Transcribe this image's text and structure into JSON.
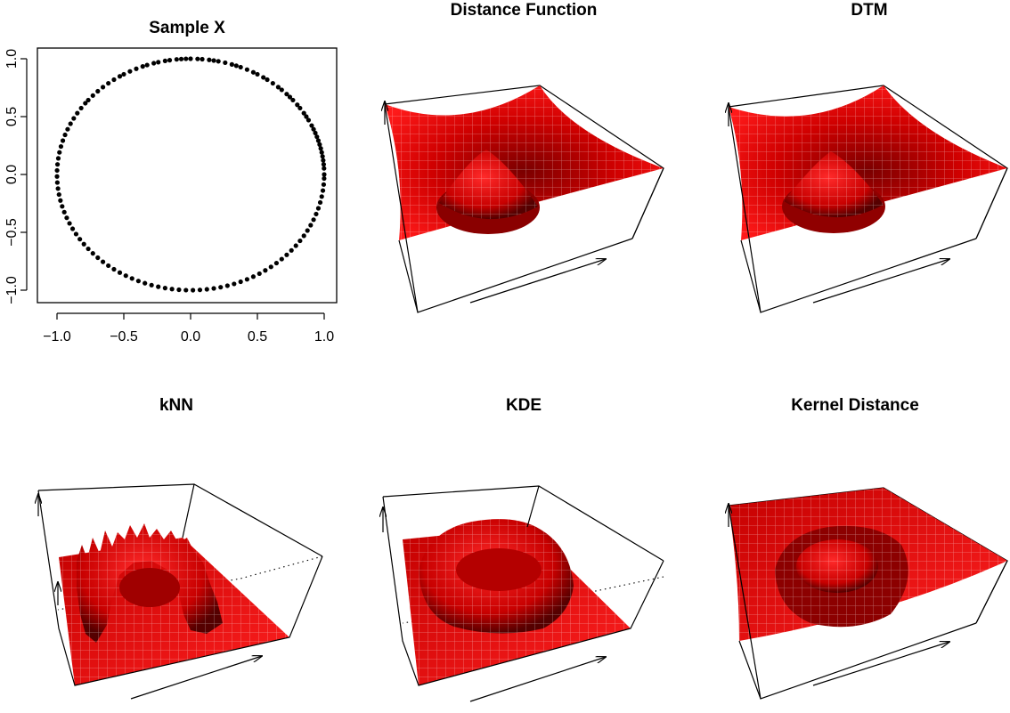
{
  "chart_data": [
    {
      "type": "scatter",
      "title": "Sample X",
      "xlim": [
        -1.0,
        1.0
      ],
      "ylim": [
        -1.0,
        1.0
      ],
      "x_ticks": [
        "−1.0",
        "−0.5",
        "0.0",
        "0.5",
        "1.0"
      ],
      "y_ticks": [
        "−1.0",
        "−0.5",
        "0.0",
        "0.5",
        "1.0"
      ],
      "points": {
        "shape": "circle",
        "radius": 1.0,
        "angles_deg": [
          0,
          3,
          5,
          7,
          9,
          11,
          13,
          15,
          17,
          19,
          21,
          23,
          25,
          28,
          30,
          32,
          35,
          37,
          40,
          42,
          44,
          47,
          49,
          52,
          55,
          57,
          60,
          62,
          65,
          68,
          70,
          72,
          75,
          78,
          80,
          82,
          85,
          87,
          90,
          92,
          94,
          96,
          99,
          101,
          104,
          106,
          109,
          111,
          114,
          117,
          120,
          122,
          125,
          128,
          131,
          134,
          137,
          140,
          142,
          145,
          148,
          151,
          154,
          157,
          160,
          163,
          166,
          169,
          172,
          175,
          178,
          181,
          184,
          187,
          190,
          193,
          196,
          199,
          202,
          205,
          208,
          211,
          214,
          217,
          220,
          223,
          226,
          229,
          232,
          235,
          238,
          241,
          244,
          247,
          250,
          253,
          256,
          259,
          262,
          265,
          268,
          271,
          274,
          277,
          280,
          283,
          286,
          289,
          292,
          295,
          298,
          301,
          304,
          307,
          310,
          313,
          316,
          319,
          322,
          325,
          328,
          331,
          334,
          337,
          340,
          343,
          346,
          349,
          352,
          355,
          358
        ]
      }
    },
    {
      "type": "surface",
      "title": "Distance Function",
      "surface": "distance-function"
    },
    {
      "type": "surface",
      "title": "DTM",
      "surface": "dtm"
    },
    {
      "type": "surface",
      "title": "kNN",
      "surface": "knn"
    },
    {
      "type": "surface",
      "title": "KDE",
      "surface": "kde"
    },
    {
      "type": "surface",
      "title": "Kernel Distance",
      "surface": "kernel-distance"
    }
  ],
  "colors": {
    "surface": "#e00000",
    "surface_shadow": "#3a0000",
    "mesh": "#ffffff",
    "axes": "#000000"
  }
}
